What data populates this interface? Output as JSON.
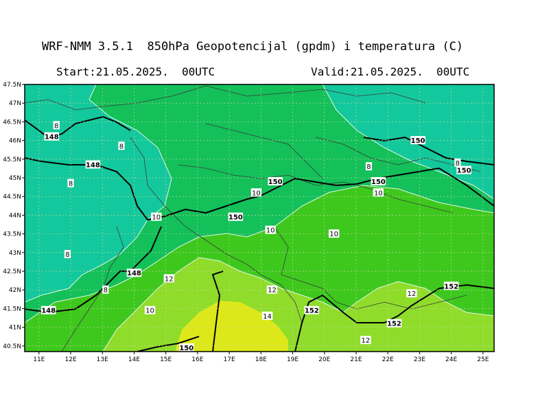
{
  "title": "WRF-NMM 3.5.1  850hPa Geopotencijal (gpdm) i temperatura (C)",
  "start": "Start:21.05.2025.  00UTC",
  "valid": "Valid:21.05.2025.  00UTC",
  "chart_data": {
    "type": "map",
    "lat_range": [
      40.35,
      47.5
    ],
    "lon_range": [
      10.55,
      25.35
    ],
    "lat_ticks": [
      "47.5N",
      "47N",
      "46.5N",
      "46N",
      "45.5N",
      "45N",
      "44.5N",
      "44N",
      "43.5N",
      "43N",
      "42.5N",
      "42N",
      "41.5N",
      "41N",
      "40.5N"
    ],
    "lon_ticks": [
      "11E",
      "12E",
      "13E",
      "14E",
      "15E",
      "16E",
      "17E",
      "18E",
      "19E",
      "20E",
      "21E",
      "22E",
      "23E",
      "24E",
      "25E"
    ],
    "grid": true,
    "colors": {
      "t8": "#13c89c",
      "t10": "#13c05a",
      "t12": "#3ec81e",
      "t12b": "#8fdc2b",
      "t14": "#dde81a",
      "contour_thin": "#e6f5e6",
      "height_line": "#000000",
      "frame": "#000000",
      "grid": "#d8d8a0"
    },
    "temperature_labels": [
      {
        "text": "8",
        "lon": 11.55,
        "lat": 46.4
      },
      {
        "text": "8",
        "lon": 13.6,
        "lat": 45.85
      },
      {
        "text": "8",
        "lon": 12.0,
        "lat": 44.85
      },
      {
        "text": "8",
        "lon": 11.9,
        "lat": 42.95
      },
      {
        "text": "8",
        "lon": 13.1,
        "lat": 42.0
      },
      {
        "text": "10",
        "lon": 14.7,
        "lat": 43.95
      },
      {
        "text": "10",
        "lon": 17.85,
        "lat": 44.6
      },
      {
        "text": "10",
        "lon": 18.3,
        "lat": 43.6
      },
      {
        "text": "10",
        "lon": 20.3,
        "lat": 43.5
      },
      {
        "text": "10",
        "lon": 14.5,
        "lat": 41.45
      },
      {
        "text": "10",
        "lon": 21.7,
        "lat": 44.6
      },
      {
        "text": "8",
        "lon": 21.4,
        "lat": 45.3
      },
      {
        "text": "8",
        "lon": 24.2,
        "lat": 45.4
      },
      {
        "text": "12",
        "lon": 15.1,
        "lat": 42.3
      },
      {
        "text": "12",
        "lon": 18.35,
        "lat": 42.0
      },
      {
        "text": "14",
        "lon": 18.2,
        "lat": 41.3
      },
      {
        "text": "12",
        "lon": 22.75,
        "lat": 41.9
      },
      {
        "text": "12",
        "lon": 21.3,
        "lat": 40.65
      }
    ],
    "height_labels": [
      {
        "text": "148",
        "lon": 11.4,
        "lat": 46.1
      },
      {
        "text": "148",
        "lon": 12.7,
        "lat": 45.35
      },
      {
        "text": "148",
        "lon": 14.0,
        "lat": 42.45
      },
      {
        "text": "148",
        "lon": 11.3,
        "lat": 41.45
      },
      {
        "text": "150",
        "lon": 18.45,
        "lat": 44.9
      },
      {
        "text": "150",
        "lon": 17.2,
        "lat": 43.95
      },
      {
        "text": "150",
        "lon": 21.7,
        "lat": 44.9
      },
      {
        "text": "150",
        "lon": 22.95,
        "lat": 46.0
      },
      {
        "text": "150",
        "lon": 24.4,
        "lat": 45.2
      },
      {
        "text": "150",
        "lon": 15.65,
        "lat": 40.45
      },
      {
        "text": "152",
        "lon": 19.6,
        "lat": 41.45
      },
      {
        "text": "152",
        "lon": 24.0,
        "lat": 42.1
      },
      {
        "text": "152",
        "lon": 22.2,
        "lat": 41.1
      }
    ]
  }
}
